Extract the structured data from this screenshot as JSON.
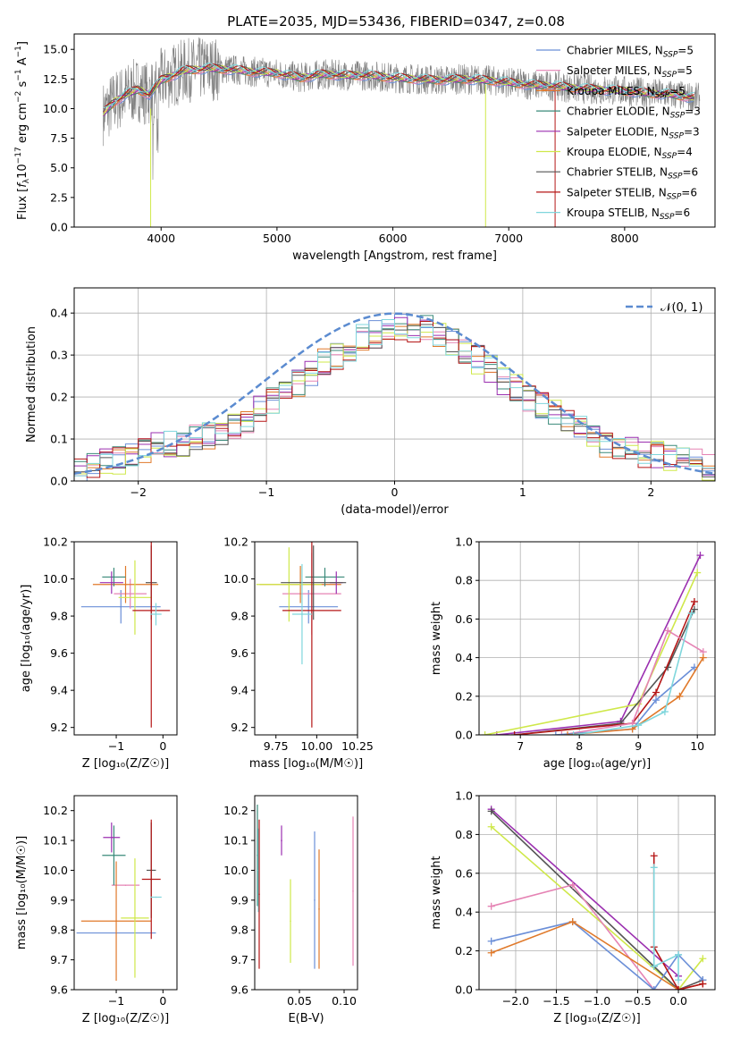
{
  "title": "PLATE=2035, MJD=53436, FIBERID=0347, z=0.08",
  "colors": {
    "Chabrier MILES": "#6b8fd8",
    "Salpeter MILES": "#e583b4",
    "Kroupa MILES": "#e0792a",
    "Chabrier ELODIE": "#3a8a7a",
    "Salpeter ELODIE": "#9b2fb0",
    "Kroupa ELODIE": "#cfe84a",
    "Chabrier STELIB": "#555555",
    "Salpeter STELIB": "#b51616",
    "Kroupa STELIB": "#7fd6dc",
    "data": "#808080",
    "normal": "#5b8bd0"
  },
  "chart_data": [
    {
      "type": "line",
      "panel": "spectrum",
      "xlabel": "wavelength [Angstrom, rest frame]",
      "ylabel": "Flux [f_λ10^-17 erg cm^-2 s^-1 A^-1]",
      "xlim": [
        3250,
        8780
      ],
      "ylim": [
        0,
        16.3
      ],
      "xticks": [
        "4000",
        "5000",
        "6000",
        "7000",
        "8000"
      ],
      "yticks": [
        "0.0",
        "2.5",
        "5.0",
        "7.5",
        "10.0",
        "12.5",
        "15.0"
      ],
      "legend": [
        {
          "name": "Chabrier MILES",
          "nssp": "5"
        },
        {
          "name": "Salpeter MILES",
          "nssp": "5"
        },
        {
          "name": "Kroupa MILES",
          "nssp": "5"
        },
        {
          "name": "Chabrier ELODIE",
          "nssp": "3"
        },
        {
          "name": "Salpeter ELODIE",
          "nssp": "3"
        },
        {
          "name": "Kroupa ELODIE",
          "nssp": "4"
        },
        {
          "name": "Chabrier STELIB",
          "nssp": "6"
        },
        {
          "name": "Salpeter STELIB",
          "nssp": "6"
        },
        {
          "name": "Kroupa STELIB",
          "nssp": "6"
        }
      ],
      "legend_position": "right",
      "continuum": [
        [
          3500,
          9.6
        ],
        [
          3600,
          10.6
        ],
        [
          3700,
          11.2
        ],
        [
          3800,
          11.6
        ],
        [
          3900,
          11.2
        ],
        [
          4000,
          12.4
        ],
        [
          4100,
          12.8
        ],
        [
          4200,
          13.2
        ],
        [
          4400,
          13.4
        ],
        [
          4600,
          13.3
        ],
        [
          4800,
          13.1
        ],
        [
          5000,
          13.0
        ],
        [
          5200,
          12.6
        ],
        [
          5400,
          12.9
        ],
        [
          5600,
          12.8
        ],
        [
          5800,
          12.8
        ],
        [
          6000,
          12.6
        ],
        [
          6200,
          12.5
        ],
        [
          6400,
          12.4
        ],
        [
          6600,
          12.5
        ],
        [
          6800,
          12.4
        ],
        [
          7000,
          12.2
        ],
        [
          7200,
          12.0
        ],
        [
          7400,
          11.9
        ],
        [
          7600,
          11.7
        ],
        [
          7800,
          11.6
        ],
        [
          8000,
          11.5
        ],
        [
          8200,
          11.3
        ],
        [
          8400,
          11.2
        ],
        [
          8600,
          10.9
        ]
      ]
    },
    {
      "type": "bar",
      "panel": "residual-histogram",
      "xlabel": "(data-model)/error",
      "ylabel": "Normed distribution",
      "xlim": [
        -2.5,
        2.5
      ],
      "ylim": [
        0,
        0.46
      ],
      "xticks": [
        "−2",
        "−1",
        "0",
        "1",
        "2"
      ],
      "yticks": [
        "0.0",
        "0.1",
        "0.2",
        "0.3",
        "0.4"
      ],
      "grid": true,
      "reference_label": "𝒩(0, 1)",
      "legend_position": "top-right",
      "bins": [
        -2.5,
        2.5,
        50
      ],
      "envelope": [
        0.03,
        0.035,
        0.045,
        0.05,
        0.06,
        0.07,
        0.08,
        0.085,
        0.09,
        0.1,
        0.11,
        0.12,
        0.13,
        0.15,
        0.17,
        0.19,
        0.21,
        0.23,
        0.25,
        0.28,
        0.3,
        0.32,
        0.34,
        0.35,
        0.36,
        0.37,
        0.36,
        0.36,
        0.35,
        0.33,
        0.31,
        0.29,
        0.27,
        0.24,
        0.22,
        0.2,
        0.18,
        0.16,
        0.14,
        0.12,
        0.1,
        0.09,
        0.08,
        0.07,
        0.065,
        0.06,
        0.055,
        0.05,
        0.045,
        0.035
      ]
    },
    {
      "type": "scatter",
      "panel": "age-vs-Z",
      "xlabel": "Z [log₁₀(Z/Z☉)]",
      "ylabel": "age  [log₁₀(age/yr)]",
      "xlim": [
        -1.9,
        0.3
      ],
      "ylim": [
        9.16,
        10.2
      ],
      "xticks": [
        "−1",
        "0"
      ],
      "yticks": [
        "9.2",
        "9.4",
        "9.6",
        "9.8",
        "10.0",
        "10.2"
      ],
      "points": [
        {
          "s": "Chabrier MILES",
          "x": -0.9,
          "xe": 0.85,
          "y": 9.85,
          "ye": 0.09
        },
        {
          "s": "Salpeter MILES",
          "x": -0.7,
          "xe": 0.35,
          "y": 9.92,
          "ye": 0.08
        },
        {
          "s": "Kroupa MILES",
          "x": -0.8,
          "xe": 0.7,
          "y": 9.97,
          "ye": 0.1
        },
        {
          "s": "Chabrier ELODIE",
          "x": -1.05,
          "xe": 0.25,
          "y": 10.01,
          "ye": 0.05
        },
        {
          "s": "Salpeter ELODIE",
          "x": -1.1,
          "xe": 0.25,
          "y": 9.98,
          "ye": 0.06
        },
        {
          "s": "Kroupa ELODIE",
          "x": -0.6,
          "xe": 0.35,
          "y": 9.9,
          "ye": 0.2
        },
        {
          "s": "Chabrier STELIB",
          "x": -0.25,
          "xe": 0.12,
          "y": 9.98,
          "ye": 0.2
        },
        {
          "s": "Salpeter STELIB",
          "x": -0.25,
          "xe": 0.4,
          "y": 9.83,
          "ye": 0.63
        },
        {
          "s": "Kroupa STELIB",
          "x": -0.15,
          "xe": 0.12,
          "y": 9.81,
          "ye": 0.06
        }
      ]
    },
    {
      "type": "scatter",
      "panel": "age-vs-mass",
      "xlabel": "mass [log₁₀(M/M☉)]",
      "ylabel": "",
      "xlim": [
        9.62,
        10.25
      ],
      "ylim": [
        9.16,
        10.2
      ],
      "xticks": [
        "9.75",
        "10.00",
        "10.25"
      ],
      "yticks": [
        "9.2",
        "9.4",
        "9.6",
        "9.8",
        "10.0",
        "10.2"
      ],
      "points": [
        {
          "s": "Chabrier MILES",
          "x": 9.95,
          "xe": 0.18,
          "y": 9.85,
          "ye": 0.09
        },
        {
          "s": "Salpeter MILES",
          "x": 9.97,
          "xe": 0.18,
          "y": 9.92,
          "ye": 0.22
        },
        {
          "s": "Kroupa MILES",
          "x": 9.9,
          "xe": 0.25,
          "y": 9.97,
          "ye": 0.1
        },
        {
          "s": "Chabrier ELODIE",
          "x": 10.05,
          "xe": 0.12,
          "y": 10.01,
          "ye": 0.05
        },
        {
          "s": "Salpeter ELODIE",
          "x": 10.12,
          "xe": 0.04,
          "y": 9.98,
          "ye": 0.06
        },
        {
          "s": "Kroupa ELODIE",
          "x": 9.83,
          "xe": 0.2,
          "y": 9.97,
          "ye": 0.2
        },
        {
          "s": "Chabrier STELIB",
          "x": 9.98,
          "xe": 0.2,
          "y": 9.98,
          "ye": 0.2
        },
        {
          "s": "Salpeter STELIB",
          "x": 9.97,
          "xe": 0.18,
          "y": 9.83,
          "ye": 0.63
        },
        {
          "s": "Kroupa STELIB",
          "x": 9.91,
          "xe": 0.06,
          "y": 9.81,
          "ye": 0.27
        }
      ]
    },
    {
      "type": "line",
      "panel": "mass-weight-vs-age",
      "xlabel": "age  [log₁₀(age/yr)]",
      "ylabel": "mass weight",
      "xlim": [
        6.3,
        10.3
      ],
      "ylim": [
        0,
        1
      ],
      "xticks": [
        "7",
        "8",
        "9",
        "10"
      ],
      "yticks": [
        "0.0",
        "0.2",
        "0.4",
        "0.6",
        "0.8",
        "1.0"
      ],
      "grid": true,
      "series": [
        {
          "s": "Salpeter ELODIE",
          "x": [
            6.6,
            8.7,
            10.05
          ],
          "y": [
            0.0,
            0.07,
            0.93
          ]
        },
        {
          "s": "Kroupa ELODIE",
          "x": [
            6.4,
            9.0,
            10.0
          ],
          "y": [
            0.0,
            0.16,
            0.84
          ]
        },
        {
          "s": "Chabrier STELIB",
          "x": [
            6.9,
            8.7,
            9.5,
            9.95
          ],
          "y": [
            0.0,
            0.06,
            0.35,
            0.65
          ]
        },
        {
          "s": "Salpeter STELIB",
          "x": [
            6.9,
            8.9,
            9.3,
            9.95
          ],
          "y": [
            0.0,
            0.06,
            0.22,
            0.69
          ]
        },
        {
          "s": "Salpeter MILES",
          "x": [
            7.7,
            8.9,
            9.5,
            10.1
          ],
          "y": [
            0.0,
            0.06,
            0.54,
            0.43
          ]
        },
        {
          "s": "Chabrier MILES",
          "x": [
            7.6,
            8.9,
            9.3,
            9.95
          ],
          "y": [
            0.0,
            0.03,
            0.18,
            0.35
          ]
        },
        {
          "s": "Kroupa MILES",
          "x": [
            7.8,
            8.9,
            9.7,
            10.1
          ],
          "y": [
            0.0,
            0.03,
            0.2,
            0.4
          ]
        },
        {
          "s": "Kroupa STELIB",
          "x": [
            7.9,
            9.0,
            9.45,
            9.9
          ],
          "y": [
            0.0,
            0.05,
            0.12,
            0.63
          ]
        }
      ]
    },
    {
      "type": "scatter",
      "panel": "mass-vs-Z",
      "xlabel": "Z [log₁₀(Z/Z☉)]",
      "ylabel": "mass [log₁₀(M/M☉)]",
      "xlim": [
        -1.9,
        0.3
      ],
      "ylim": [
        9.6,
        10.25
      ],
      "xticks": [
        "−1",
        "0"
      ],
      "yticks": [
        "9.6",
        "9.7",
        "9.8",
        "9.9",
        "10.0",
        "10.1",
        "10.2"
      ],
      "points": [
        {
          "s": "Chabrier MILES",
          "x": -1.0,
          "xe": 0.85,
          "y": 9.79,
          "ye": 0.0
        },
        {
          "s": "Salpeter MILES",
          "x": -0.8,
          "xe": 0.3,
          "y": 9.95,
          "ye": 0.0
        },
        {
          "s": "Kroupa MILES",
          "x": -1.0,
          "xe": 0.75,
          "y": 9.83,
          "ye": 0.2
        },
        {
          "s": "Chabrier ELODIE",
          "x": -1.05,
          "xe": 0.25,
          "y": 10.05,
          "ye": 0.1
        },
        {
          "s": "Salpeter ELODIE",
          "x": -1.1,
          "xe": 0.18,
          "y": 10.11,
          "ye": 0.05
        },
        {
          "s": "Kroupa ELODIE",
          "x": -0.6,
          "xe": 0.3,
          "y": 9.84,
          "ye": 0.2
        },
        {
          "s": "Chabrier STELIB",
          "x": -0.25,
          "xe": 0.1,
          "y": 10.0,
          "ye": 0.16
        },
        {
          "s": "Salpeter STELIB",
          "x": -0.25,
          "xe": 0.2,
          "y": 9.97,
          "ye": 0.2
        },
        {
          "s": "Kroupa STELIB",
          "x": -0.15,
          "xe": 0.12,
          "y": 9.91,
          "ye": 0.0
        }
      ]
    },
    {
      "type": "scatter",
      "panel": "mass-vs-EBV",
      "xlabel": "E(B-V)",
      "ylabel": "",
      "xlim": [
        0.0,
        0.115
      ],
      "ylim": [
        9.6,
        10.25
      ],
      "xticks": [
        "0.05",
        "0.10"
      ],
      "yticks": [
        "9.6",
        "9.7",
        "9.8",
        "9.9",
        "10.0",
        "10.1",
        "10.2"
      ],
      "points": [
        {
          "s": "Chabrier ELODIE",
          "x": 0.003,
          "y": 10.05,
          "ye": 0.17
        },
        {
          "s": "Kroupa STELIB",
          "x": 0.004,
          "y": 10.0,
          "ye": 0.14
        },
        {
          "s": "Salpeter STELIB",
          "x": 0.005,
          "y": 9.92,
          "ye": 0.25
        },
        {
          "s": "Salpeter ELODIE",
          "x": 0.03,
          "y": 10.1,
          "ye": 0.05
        },
        {
          "s": "Kroupa ELODIE",
          "x": 0.04,
          "y": 9.83,
          "ye": 0.14
        },
        {
          "s": "Chabrier MILES",
          "x": 0.067,
          "y": 9.9,
          "ye": 0.23
        },
        {
          "s": "Kroupa MILES",
          "x": 0.072,
          "y": 9.87,
          "ye": 0.2
        },
        {
          "s": "Salpeter MILES",
          "x": 0.11,
          "y": 9.93,
          "ye": 0.25
        }
      ]
    },
    {
      "type": "line",
      "panel": "mass-weight-vs-Z",
      "xlabel": "Z [log₁₀(Z/Z☉)]",
      "ylabel": "mass weight",
      "xlim": [
        -2.45,
        0.45
      ],
      "ylim": [
        0,
        1
      ],
      "xticks": [
        "−2.0",
        "−1.5",
        "−1.0",
        "−0.5",
        "0.0"
      ],
      "yticks": [
        "0.0",
        "0.2",
        "0.4",
        "0.6",
        "0.8",
        "1.0"
      ],
      "grid": true,
      "series": [
        {
          "s": "Salpeter ELODIE",
          "x": [
            -2.3,
            0.0
          ],
          "y": [
            0.93,
            0.07
          ]
        },
        {
          "s": "Kroupa ELODIE",
          "x": [
            -2.3,
            0.0,
            0.3
          ],
          "y": [
            0.84,
            0.0,
            0.16
          ]
        },
        {
          "s": "Chabrier STELIB",
          "x": [
            -2.3,
            -0.3,
            0.0,
            0.3
          ],
          "y": [
            0.92,
            0.12,
            0.0,
            0.05
          ]
        },
        {
          "s": "Salpeter MILES",
          "x": [
            -2.3,
            -1.3,
            -0.3,
            0.0,
            0.3
          ],
          "y": [
            0.43,
            0.54,
            0.0,
            0.0,
            0.03
          ]
        },
        {
          "s": "Chabrier MILES",
          "x": [
            -2.3,
            -1.3,
            -0.3,
            0.0,
            0.3
          ],
          "y": [
            0.25,
            0.35,
            0.0,
            0.18,
            0.05
          ]
        },
        {
          "s": "Kroupa MILES",
          "x": [
            -2.3,
            -1.3,
            0.0,
            0.3
          ],
          "y": [
            0.19,
            0.35,
            0.0,
            0.03
          ]
        },
        {
          "s": "Salpeter STELIB",
          "x": [
            -0.3,
            -0.3,
            0.0,
            0.3
          ],
          "y": [
            0.69,
            0.22,
            0.0,
            0.03
          ]
        },
        {
          "s": "Kroupa STELIB",
          "x": [
            -0.3,
            -0.3,
            0.0,
            0.0
          ],
          "y": [
            0.63,
            0.12,
            0.18,
            0.05
          ]
        }
      ]
    }
  ]
}
